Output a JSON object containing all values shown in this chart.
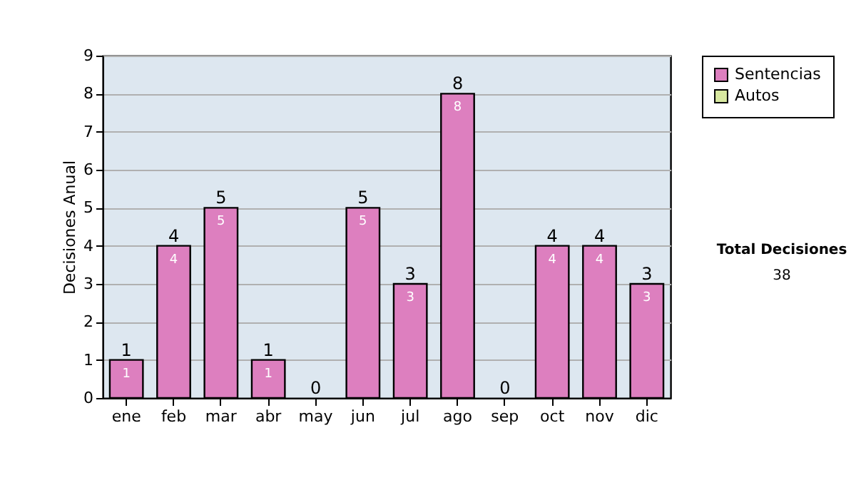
{
  "chart_data": {
    "type": "bar",
    "ylabel": "Decisiones Anual",
    "categories": [
      "ene",
      "feb",
      "mar",
      "abr",
      "may",
      "jun",
      "jul",
      "ago",
      "sep",
      "oct",
      "nov",
      "dic"
    ],
    "series": [
      {
        "name": "Sentencias",
        "color": "#dd7fbf",
        "values": [
          1,
          4,
          5,
          1,
          0,
          5,
          3,
          8,
          0,
          4,
          4,
          3
        ],
        "value_labels": [
          "1",
          "4",
          "5",
          "1",
          null,
          "5",
          "3",
          "8",
          null,
          "4",
          "4",
          "3"
        ]
      },
      {
        "name": "Autos",
        "color": "#d8e8a0",
        "values": [
          0,
          0,
          0,
          0,
          0,
          0,
          0,
          0,
          0,
          0,
          0,
          0
        ]
      }
    ],
    "stacked": true,
    "totals": [
      "1",
      "4",
      "5",
      "1",
      "0",
      "5",
      "3",
      "8",
      "0",
      "4",
      "4",
      "3"
    ],
    "ylim": [
      0,
      9
    ],
    "yticks": [
      0,
      1,
      2,
      3,
      4,
      5,
      6,
      7,
      8,
      9
    ],
    "grid": "y",
    "legend": "right",
    "annotations": [
      "Total Decisiones",
      "38"
    ]
  }
}
